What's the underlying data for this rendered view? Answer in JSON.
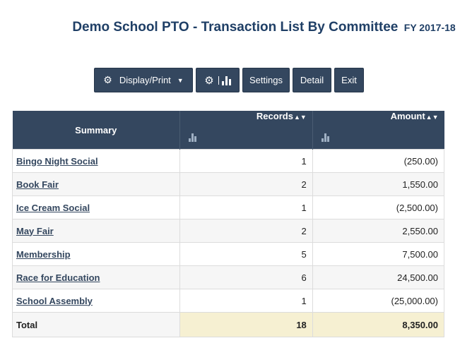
{
  "header": {
    "title": "Demo School PTO - Transaction List By Committee",
    "fiscal_year": "FY 2017-18"
  },
  "toolbar": {
    "display_print": "Display/Print",
    "settings": "Settings",
    "detail": "Detail",
    "exit": "Exit"
  },
  "table": {
    "headers": {
      "summary": "Summary",
      "records": "Records",
      "amount": "Amount"
    },
    "rows": [
      {
        "name": "Bingo Night Social",
        "records": "1",
        "amount": "(250.00)"
      },
      {
        "name": "Book Fair",
        "records": "2",
        "amount": "1,550.00"
      },
      {
        "name": "Ice Cream Social",
        "records": "1",
        "amount": "(2,500.00)"
      },
      {
        "name": "May Fair",
        "records": "2",
        "amount": "2,550.00"
      },
      {
        "name": "Membership",
        "records": "5",
        "amount": "7,500.00"
      },
      {
        "name": "Race for Education",
        "records": "6",
        "amount": "24,500.00"
      },
      {
        "name": "School Assembly",
        "records": "1",
        "amount": "(25,000.00)"
      }
    ],
    "total": {
      "label": "Total",
      "records": "18",
      "amount": "8,350.00"
    }
  },
  "icons": {
    "settings": "gear-icon",
    "chart": "bar-chart-icon",
    "sort": "sort-icon"
  }
}
